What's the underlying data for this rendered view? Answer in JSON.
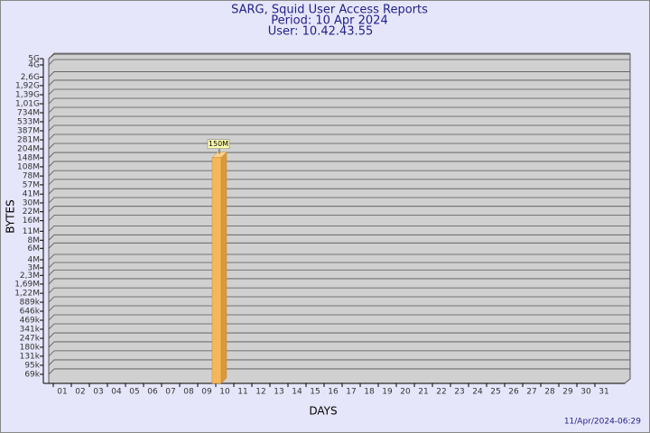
{
  "chart_data": {
    "type": "bar",
    "title": "SARG, Squid User Access Reports",
    "subtitle": "Period: 10 Apr 2024",
    "user": "User: 10.42.43.55",
    "x_label": "DAYS",
    "y_label": "BYTES",
    "footer": "11/Apr/2024-06:29",
    "categories": [
      "01",
      "02",
      "03",
      "04",
      "05",
      "06",
      "07",
      "08",
      "09",
      "10",
      "11",
      "12",
      "13",
      "14",
      "15",
      "16",
      "17",
      "18",
      "19",
      "20",
      "21",
      "22",
      "23",
      "24",
      "25",
      "26",
      "27",
      "28",
      "29",
      "30",
      "31"
    ],
    "values": [
      null,
      null,
      null,
      null,
      null,
      null,
      null,
      null,
      null,
      150000000,
      null,
      null,
      null,
      null,
      null,
      null,
      null,
      null,
      null,
      null,
      null,
      null,
      null,
      null,
      null,
      null,
      null,
      null,
      null,
      null,
      null
    ],
    "value_labels": [
      null,
      null,
      null,
      null,
      null,
      null,
      null,
      null,
      null,
      "150M",
      null,
      null,
      null,
      null,
      null,
      null,
      null,
      null,
      null,
      null,
      null,
      null,
      null,
      null,
      null,
      null,
      null,
      null,
      null,
      null,
      null
    ],
    "color": "#f5b75c",
    "log_scale": true,
    "grid": true,
    "ylim": [
      50000,
      5000000000
    ],
    "yticks": [
      {
        "value": 69000,
        "label": "69k"
      },
      {
        "value": 95000,
        "label": "95k"
      },
      {
        "value": 131000,
        "label": "131k"
      },
      {
        "value": 180000,
        "label": "180k"
      },
      {
        "value": 247000,
        "label": "247k"
      },
      {
        "value": 341000,
        "label": "341k"
      },
      {
        "value": 469000,
        "label": "469k"
      },
      {
        "value": 646000,
        "label": "646k"
      },
      {
        "value": 889000,
        "label": "889k"
      },
      {
        "value": 1220000,
        "label": "1,22M"
      },
      {
        "value": 1690000,
        "label": "1,69M"
      },
      {
        "value": 2300000,
        "label": "2,3M"
      },
      {
        "value": 3000000,
        "label": "3M"
      },
      {
        "value": 4000000,
        "label": "4M"
      },
      {
        "value": 6000000,
        "label": "6M"
      },
      {
        "value": 8000000,
        "label": "8M"
      },
      {
        "value": 11000000,
        "label": "11M"
      },
      {
        "value": 16000000,
        "label": "16M"
      },
      {
        "value": 22000000,
        "label": "22M"
      },
      {
        "value": 30000000,
        "label": "30M"
      },
      {
        "value": 41000000,
        "label": "41M"
      },
      {
        "value": 57000000,
        "label": "57M"
      },
      {
        "value": 78000000,
        "label": "78M"
      },
      {
        "value": 108000000,
        "label": "108M"
      },
      {
        "value": 148000000,
        "label": "148M"
      },
      {
        "value": 204000000,
        "label": "204M"
      },
      {
        "value": 281000000,
        "label": "281M"
      },
      {
        "value": 387000000,
        "label": "387M"
      },
      {
        "value": 533000000,
        "label": "533M"
      },
      {
        "value": 734000000,
        "label": "734M"
      },
      {
        "value": 1010000000,
        "label": "1,01G"
      },
      {
        "value": 1390000000,
        "label": "1,39G"
      },
      {
        "value": 1920000000,
        "label": "1,92G"
      },
      {
        "value": 2600000000,
        "label": "2,6G"
      },
      {
        "value": 4000000000,
        "label": "4G"
      },
      {
        "value": 5000000000,
        "label": "5G"
      }
    ]
  }
}
